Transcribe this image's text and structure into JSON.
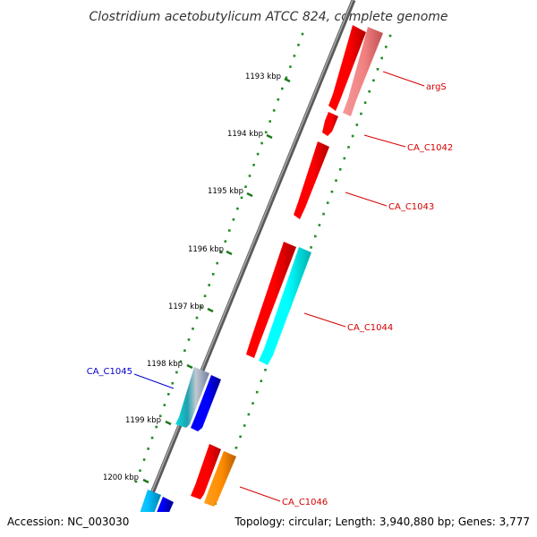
{
  "title": "Clostridium acetobutylicum ATCC 824, complete genome",
  "footer": {
    "accession": "Accession: NC_003030",
    "topology": "Topology: circular; Length: 3,940,880 bp; Genes: 3,777"
  },
  "ticks": [
    "1193 kbp",
    "1194 kbp",
    "1195 kbp",
    "1196 kbp",
    "1197 kbp",
    "1198 kbp",
    "1199 kbp",
    "1200 kbp"
  ],
  "gene_labels": [
    {
      "name": "argS",
      "color": "#d40000"
    },
    {
      "name": "CA_C1042",
      "color": "#d40000"
    },
    {
      "name": "CA_C1043",
      "color": "#d40000"
    },
    {
      "name": "CA_C1044",
      "color": "#d40000"
    },
    {
      "name": "CA_C1045",
      "color": "#0000cc"
    },
    {
      "name": "CA_C1046",
      "color": "#d40000"
    }
  ],
  "colors": {
    "backbone": "#808080",
    "forward_cds": "#ff0000",
    "reverse_cds": "#0000ee",
    "rna": "#00e5ee",
    "pink": "#f08080",
    "orange": "#ff8c00",
    "skyblue": "#00bfff",
    "tick": "#228b22"
  }
}
